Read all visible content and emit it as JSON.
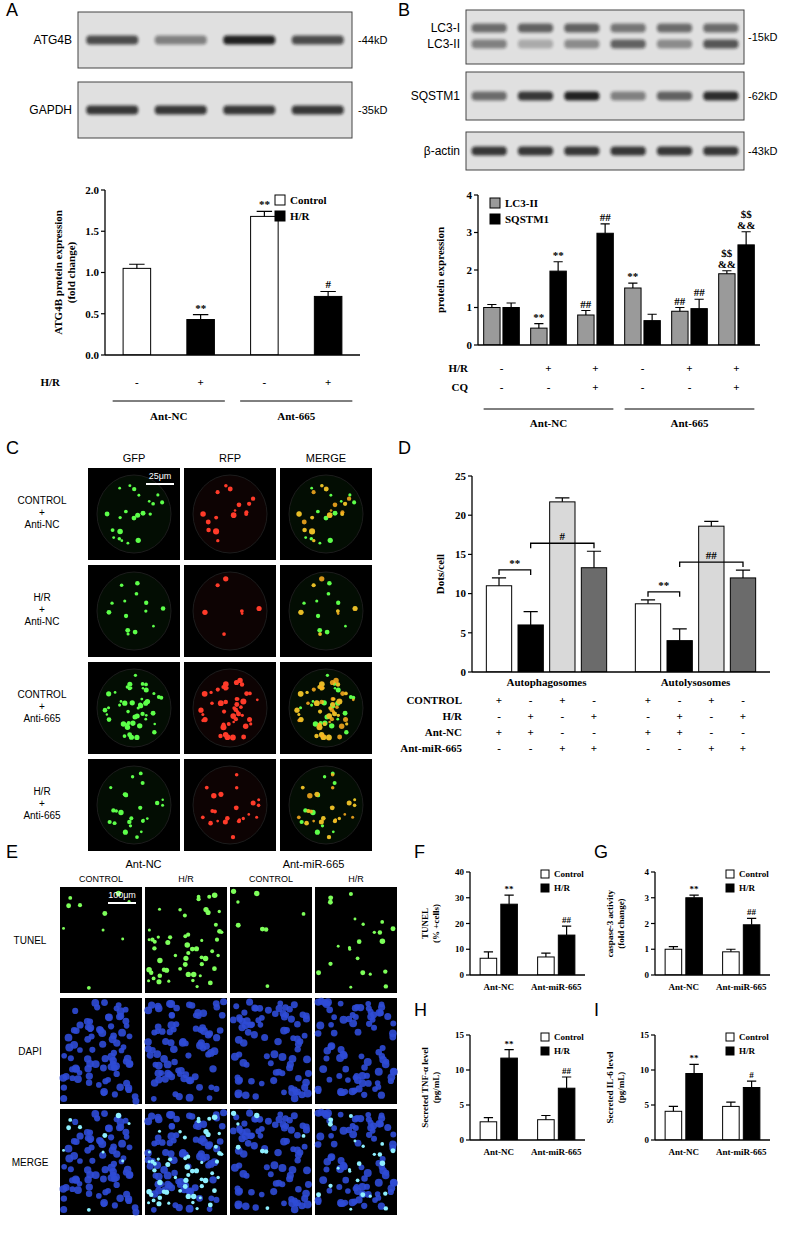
{
  "panel_labels": [
    "A",
    "B",
    "C",
    "D",
    "E",
    "F",
    "G",
    "H",
    "I"
  ],
  "blots": [
    {
      "bands": [
        {
          "label": "ATG4B",
          "size": "-44kD"
        },
        {
          "label": "GAPDH",
          "size": "-35kD"
        }
      ]
    },
    {
      "bands": [
        {
          "label": "LC3-I\nLC3-II",
          "size": "-15kD"
        },
        {
          "label": "SQSTM1",
          "size": "-62kD"
        },
        {
          "label": "β-actin",
          "size": "-43kD"
        }
      ]
    }
  ],
  "micrographs": [
    {
      "columns": [
        "GFP",
        "RFP",
        "MERGE"
      ],
      "rows": [
        "CONTROL\n+\nAnti-NC",
        "H/R\n+\nAnti-NC",
        "CONTROL\n+\nAnti-665",
        "H/R\n+\nAnti-665"
      ],
      "scale_bar": "25μm"
    },
    {
      "groups": [
        "Ant-NC",
        "Ant-miR-665"
      ],
      "columns": [
        "CONTROL",
        "H/R",
        "CONTROL",
        "H/R"
      ],
      "rows": [
        "TUNEL",
        "DAPI",
        "MERGE"
      ],
      "scale_bar": "100μm"
    }
  ],
  "chart_data": [
    {
      "type": "bar",
      "y_label": "ATG4B protein expression\n(fold change)",
      "categories": [
        null,
        null,
        null,
        null
      ],
      "x_rows": [
        {
          "label": "H/R",
          "values": [
            "-",
            "+",
            "-",
            "+"
          ]
        }
      ],
      "groups": [
        "Ant-NC",
        "Ant-665"
      ],
      "ylim": [
        0,
        2
      ],
      "yticks": [
        {
          "value": 0,
          "label": "0.0"
        },
        0.5,
        {
          "value": 1,
          "label": "1.0"
        },
        1.5,
        {
          "value": 2,
          "label": "2.0"
        }
      ],
      "legend": "upper right",
      "series": [
        {
          "name": "Control",
          "color": "#ffffff",
          "values": [
            1.05,
            null,
            1.68,
            null
          ],
          "errors": [
            0.05,
            null,
            0.06,
            null
          ],
          "annotations": [
            null,
            null,
            "**",
            null
          ]
        },
        {
          "name": "H/R",
          "color": "#000000",
          "values": [
            null,
            0.43,
            null,
            0.71
          ],
          "errors": [
            null,
            0.06,
            null,
            0.06
          ],
          "annotations": [
            null,
            "**",
            null,
            "#"
          ]
        }
      ]
    },
    {
      "type": "bar",
      "y_label": "protein expression",
      "categories": [
        null,
        null,
        null,
        null,
        null,
        null
      ],
      "x_rows": [
        {
          "label": "H/R",
          "values": [
            "-",
            "+",
            "+",
            "-",
            "+",
            "+"
          ]
        },
        {
          "label": "CQ",
          "values": [
            "-",
            "-",
            "+",
            "-",
            "-",
            "+"
          ]
        }
      ],
      "groups": [
        "Ant-NC",
        "Ant-665"
      ],
      "ylim": [
        0,
        4
      ],
      "yticks": [
        0,
        1,
        2,
        3,
        4
      ],
      "legend": "upper left",
      "series": [
        {
          "name": "LC3-II",
          "color": "#9a9a9a",
          "values": [
            1.0,
            0.45,
            0.8,
            1.52,
            0.9,
            1.9
          ],
          "errors": [
            0.08,
            0.12,
            0.12,
            0.13,
            0.1,
            0.08
          ],
          "annotations": [
            null,
            "**",
            "##",
            "**",
            "##",
            "$$\n&&"
          ]
        },
        {
          "name": "SQSTM1",
          "color": "#000000",
          "values": [
            1.0,
            1.97,
            2.98,
            0.65,
            0.97,
            2.67
          ],
          "errors": [
            0.12,
            0.25,
            0.25,
            0.17,
            0.25,
            0.35
          ],
          "annotations": [
            null,
            "**",
            "##",
            null,
            "##",
            "$$\n&&"
          ]
        }
      ]
    },
    {
      "type": "bar",
      "y_label": "Dots/cell",
      "categories": [
        "Autophagosomes",
        "Autolysosomes"
      ],
      "x_rows": [
        {
          "label": "CONTROL",
          "values": [
            "+",
            "-",
            "+",
            "-",
            "+",
            "-",
            "+",
            "-"
          ]
        },
        {
          "label": "H/R",
          "values": [
            "-",
            "+",
            "-",
            "+",
            "-",
            "+",
            "-",
            "+"
          ]
        },
        {
          "label": "Ant-NC",
          "values": [
            "+",
            "+",
            "-",
            "-",
            "+",
            "+",
            "-",
            "-"
          ]
        },
        {
          "label": "Ant-miR-665",
          "values": [
            "-",
            "-",
            "+",
            "+",
            "-",
            "-",
            "+",
            "+"
          ]
        }
      ],
      "ylim": [
        0,
        25
      ],
      "yticks": [
        0,
        5,
        10,
        15,
        20,
        25
      ],
      "series": [
        {
          "color": "#ffffff",
          "values": [
            11.0,
            8.7
          ],
          "errors": [
            1.0,
            0.5
          ]
        },
        {
          "color": "#000000",
          "values": [
            6.0,
            4.0
          ],
          "errors": [
            1.7,
            1.5
          ]
        },
        {
          "color": "#d9d9d9",
          "values": [
            21.7,
            18.6
          ],
          "errors": [
            0.5,
            0.6
          ]
        },
        {
          "color": "#6b6b6b",
          "values": [
            13.3,
            12.0
          ],
          "errors": [
            2.1,
            1.0
          ]
        }
      ],
      "brackets": [
        {
          "text": "**",
          "category": 0,
          "from": 0,
          "to": 1
        },
        {
          "text": "#",
          "category": 0,
          "from": 1,
          "to": 3
        },
        {
          "text": "**",
          "category": 1,
          "from": 0,
          "to": 1
        },
        {
          "text": "##",
          "category": 1,
          "from": 1,
          "to": 3
        }
      ]
    },
    {
      "type": "bar",
      "y_label": "TUNEL\n(% +cells)",
      "categories": [
        "Ant-NC",
        "Ant-miR-665"
      ],
      "ylim": [
        0,
        40
      ],
      "yticks": [
        0,
        10,
        20,
        30,
        40
      ],
      "legend": "upper right",
      "series": [
        {
          "name": "Control",
          "color": "#ffffff",
          "values": [
            6.5,
            7.0
          ],
          "errors": [
            2.5,
            1.5
          ]
        },
        {
          "name": "H/R",
          "color": "#000000",
          "values": [
            27.5,
            15.5
          ],
          "errors": [
            3.5,
            3.5
          ],
          "annotations": [
            "**",
            "##"
          ]
        }
      ]
    },
    {
      "type": "bar",
      "y_label": "caspase-3 activity\n(fold change)",
      "categories": [
        "Ant-NC",
        "Ant-miR-665"
      ],
      "ylim": [
        0,
        4
      ],
      "yticks": [
        0,
        1,
        2,
        3,
        4
      ],
      "legend": "upper right",
      "series": [
        {
          "name": "Control",
          "color": "#ffffff",
          "values": [
            1.0,
            0.9
          ],
          "errors": [
            0.1,
            0.1
          ]
        },
        {
          "name": "H/R",
          "color": "#000000",
          "values": [
            3.0,
            1.95
          ],
          "errors": [
            0.1,
            0.25
          ],
          "annotations": [
            "**",
            "##"
          ]
        }
      ]
    },
    {
      "type": "bar",
      "y_label": "Secreted TNF-α level\n(pg/mL)",
      "categories": [
        "Ant-NC",
        "Ant-miR-665"
      ],
      "ylim": [
        0,
        15
      ],
      "yticks": [
        0,
        5,
        10,
        15
      ],
      "legend": "upper right",
      "series": [
        {
          "name": "Control",
          "color": "#ffffff",
          "values": [
            2.6,
            2.9
          ],
          "errors": [
            0.6,
            0.6
          ]
        },
        {
          "name": "H/R",
          "color": "#000000",
          "values": [
            11.7,
            7.4
          ],
          "errors": [
            1.2,
            1.6
          ],
          "annotations": [
            "**",
            "##"
          ]
        }
      ]
    },
    {
      "type": "bar",
      "y_label": "Secreted IL-6 level\n(pg/mL)",
      "categories": [
        "Ant-NC",
        "Ant-miR-665"
      ],
      "ylim": [
        0,
        15
      ],
      "yticks": [
        0,
        5,
        10,
        15
      ],
      "legend": "upper right",
      "series": [
        {
          "name": "Control",
          "color": "#ffffff",
          "values": [
            4.1,
            4.8
          ],
          "errors": [
            0.7,
            0.6
          ]
        },
        {
          "name": "H/R",
          "color": "#000000",
          "values": [
            9.5,
            7.5
          ],
          "errors": [
            1.3,
            0.9
          ],
          "annotations": [
            "**",
            "#"
          ]
        }
      ]
    }
  ]
}
